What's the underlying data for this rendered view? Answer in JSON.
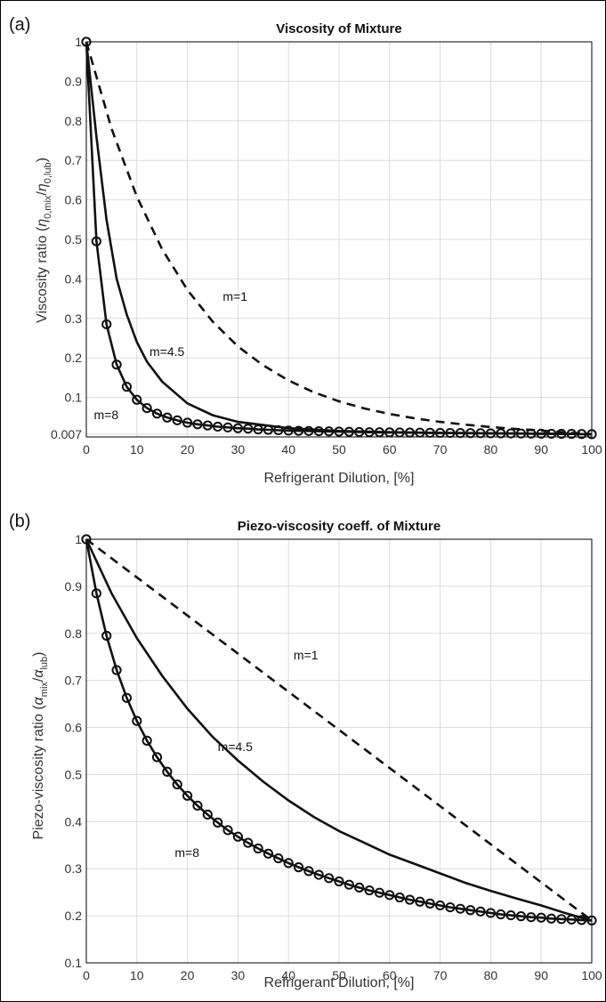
{
  "chart_data": [
    {
      "type": "line",
      "panel_label": "(a)",
      "title": "Viscosity of Mixture",
      "xlabel": "Refrigerant Dilution, [%]",
      "ylabel": "Viscosity ratio (η0,mix/η0,lub)",
      "xlim": [
        0,
        100
      ],
      "ylim": [
        0,
        1
      ],
      "grid": true,
      "x_ticks": [
        "0",
        "10",
        "20",
        "30",
        "40",
        "50",
        "60",
        "70",
        "80",
        "90",
        "100"
      ],
      "y_ticks": [
        {
          "v": 0.007,
          "t": "0.007"
        },
        {
          "v": 0.1,
          "t": "0.1"
        },
        {
          "v": 0.2,
          "t": "0.2"
        },
        {
          "v": 0.3,
          "t": "0.3"
        },
        {
          "v": 0.4,
          "t": "0.4"
        },
        {
          "v": 0.5,
          "t": "0.5"
        },
        {
          "v": 0.6,
          "t": "0.6"
        },
        {
          "v": 0.7,
          "t": "0.7"
        },
        {
          "v": 0.8,
          "t": "0.8"
        },
        {
          "v": 0.9,
          "t": "0.9"
        },
        {
          "v": 1,
          "t": "1"
        }
      ],
      "series": [
        {
          "name": "m=1",
          "style": "dashed",
          "x": [
            0,
            5,
            10,
            15,
            20,
            25,
            30,
            35,
            40,
            45,
            50,
            55,
            60,
            65,
            70,
            75,
            80,
            85,
            90,
            95,
            100
          ],
          "y": [
            1,
            0.78,
            0.608,
            0.475,
            0.372,
            0.292,
            0.229,
            0.181,
            0.143,
            0.113,
            0.09,
            0.072,
            0.058,
            0.047,
            0.038,
            0.031,
            0.025,
            0.02,
            0.016,
            0.011,
            0.007
          ]
        },
        {
          "name": "m=4.5",
          "style": "solid",
          "x": [
            0,
            2,
            4,
            6,
            8,
            10,
            12,
            15,
            20,
            25,
            30,
            40,
            50,
            60,
            70,
            80,
            90,
            100
          ],
          "y": [
            1,
            0.76,
            0.55,
            0.4,
            0.31,
            0.24,
            0.19,
            0.14,
            0.085,
            0.055,
            0.038,
            0.022,
            0.015,
            0.012,
            0.01,
            0.009,
            0.008,
            0.007
          ]
        },
        {
          "name": "m=8",
          "style": "solid-circle",
          "x": [
            0,
            2,
            4,
            6,
            8,
            10,
            12,
            14,
            16,
            18,
            20,
            22,
            24,
            26,
            28,
            30,
            32,
            34,
            36,
            38,
            40,
            42,
            44,
            46,
            48,
            50,
            52,
            54,
            56,
            58,
            60,
            62,
            64,
            66,
            68,
            70,
            72,
            74,
            76,
            78,
            80,
            82,
            84,
            86,
            88,
            90,
            92,
            94,
            96,
            98,
            100
          ],
          "y": [
            1,
            0.495,
            0.285,
            0.183,
            0.127,
            0.094,
            0.073,
            0.059,
            0.049,
            0.042,
            0.036,
            0.032,
            0.029,
            0.026,
            0.024,
            0.022,
            0.021,
            0.019,
            0.018,
            0.017,
            0.016,
            0.0155,
            0.015,
            0.0145,
            0.014,
            0.0135,
            0.013,
            0.0125,
            0.012,
            0.0118,
            0.0115,
            0.0112,
            0.011,
            0.0108,
            0.0105,
            0.0102,
            0.01,
            0.0098,
            0.0096,
            0.0094,
            0.0092,
            0.009,
            0.0088,
            0.0086,
            0.0084,
            0.0082,
            0.008,
            0.0078,
            0.0076,
            0.0073,
            0.007
          ]
        }
      ],
      "annotations": [
        {
          "text": "m=1",
          "x": 27,
          "y": 0.345
        },
        {
          "text": "m=4.5",
          "x": 12.5,
          "y": 0.205
        },
        {
          "text": "m=8",
          "x": 1.5,
          "y": 0.045
        }
      ]
    },
    {
      "type": "line",
      "panel_label": "(b)",
      "title": "Piezo-viscosity coeff. of Mixture",
      "xlabel": "Refrigerant Dilution, [%]",
      "ylabel": "Piezo-viscosity ratio (αmix/αlub)",
      "xlim": [
        0,
        100
      ],
      "ylim": [
        0.1,
        1
      ],
      "grid": true,
      "x_ticks": [
        "0",
        "10",
        "20",
        "30",
        "40",
        "50",
        "60",
        "70",
        "80",
        "90",
        "100"
      ],
      "y_ticks": [
        {
          "v": 0.1,
          "t": "0.1"
        },
        {
          "v": 0.2,
          "t": "0.2"
        },
        {
          "v": 0.3,
          "t": "0.3"
        },
        {
          "v": 0.4,
          "t": "0.4"
        },
        {
          "v": 0.5,
          "t": "0.5"
        },
        {
          "v": 0.6,
          "t": "0.6"
        },
        {
          "v": 0.7,
          "t": "0.7"
        },
        {
          "v": 0.8,
          "t": "0.8"
        },
        {
          "v": 0.9,
          "t": "0.9"
        },
        {
          "v": 1,
          "t": "1"
        }
      ],
      "series": [
        {
          "name": "m=1",
          "style": "dashed",
          "x": [
            0,
            100
          ],
          "y": [
            1,
            0.19
          ]
        },
        {
          "name": "m=4.5",
          "style": "solid",
          "x": [
            0,
            5,
            10,
            15,
            20,
            25,
            30,
            35,
            40,
            45,
            50,
            55,
            60,
            65,
            70,
            75,
            80,
            85,
            90,
            95,
            100
          ],
          "y": [
            1,
            0.885,
            0.79,
            0.71,
            0.64,
            0.58,
            0.53,
            0.485,
            0.445,
            0.41,
            0.38,
            0.355,
            0.33,
            0.31,
            0.29,
            0.27,
            0.253,
            0.237,
            0.222,
            0.205,
            0.19
          ]
        },
        {
          "name": "m=8",
          "style": "solid-circle",
          "x": [
            0,
            2,
            4,
            6,
            8,
            10,
            12,
            14,
            16,
            18,
            20,
            22,
            24,
            26,
            28,
            30,
            32,
            34,
            36,
            38,
            40,
            42,
            44,
            46,
            48,
            50,
            52,
            54,
            56,
            58,
            60,
            62,
            64,
            66,
            68,
            70,
            72,
            74,
            76,
            78,
            80,
            82,
            84,
            86,
            88,
            90,
            92,
            94,
            96,
            98,
            100
          ],
          "y": [
            1,
            0.885,
            0.795,
            0.722,
            0.663,
            0.614,
            0.572,
            0.537,
            0.506,
            0.479,
            0.455,
            0.434,
            0.415,
            0.398,
            0.382,
            0.368,
            0.355,
            0.343,
            0.332,
            0.322,
            0.312,
            0.303,
            0.295,
            0.287,
            0.28,
            0.273,
            0.266,
            0.26,
            0.254,
            0.249,
            0.244,
            0.239,
            0.234,
            0.23,
            0.226,
            0.222,
            0.218,
            0.215,
            0.212,
            0.209,
            0.206,
            0.203,
            0.201,
            0.199,
            0.197,
            0.196,
            0.194,
            0.193,
            0.192,
            0.191,
            0.19
          ]
        }
      ],
      "annotations": [
        {
          "text": "m=1",
          "x": 41,
          "y": 0.745
        },
        {
          "text": "m=4.5",
          "x": 26,
          "y": 0.55
        },
        {
          "text": "m=8",
          "x": 17.5,
          "y": 0.325
        }
      ]
    }
  ]
}
